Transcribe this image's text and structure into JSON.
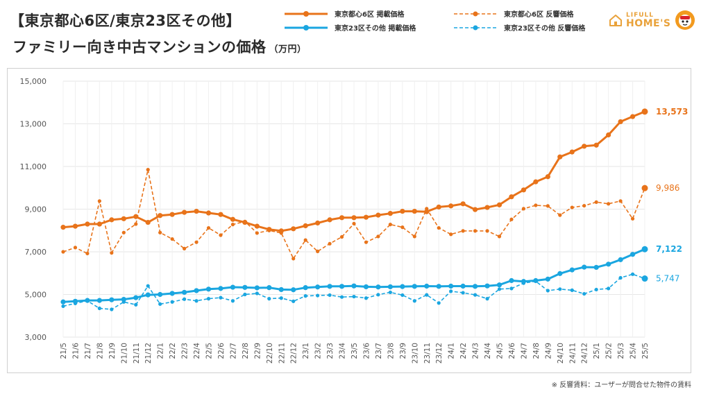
{
  "header": {
    "title_line1": "【東京都心6区/東京23区その他】",
    "title_line2": "ファミリー向き中古マンションの価格",
    "unit": "（万円）"
  },
  "legend": [
    {
      "label": "東京都心6区 掲載価格",
      "color": "#e8731a",
      "style": "solid"
    },
    {
      "label": "東京都心6区 反響価格",
      "color": "#e8731a",
      "style": "dashed"
    },
    {
      "label": "東京23区その他 掲載価格",
      "color": "#1aa6e0",
      "style": "solid"
    },
    {
      "label": "東京23区その他 反響価格",
      "color": "#1aa6e0",
      "style": "dashed"
    }
  ],
  "brand": {
    "line1": "LIFULL",
    "line2": "HOME'S",
    "color": "#e9a23b"
  },
  "footnote": "※ 反響賃料：ユーザーが問合せた物件の賃料",
  "chart_data": {
    "type": "line",
    "x": [
      "21/5",
      "21/6",
      "21/7",
      "21/8",
      "21/9",
      "21/10",
      "21/11",
      "21/12",
      "22/1",
      "22/2",
      "22/3",
      "22/4",
      "22/5",
      "22/6",
      "22/7",
      "22/8",
      "22/9",
      "22/10",
      "22/11",
      "22/12",
      "23/1",
      "23/2",
      "23/3",
      "23/4",
      "23/5",
      "23/6",
      "23/7",
      "23/8",
      "23/9",
      "23/10",
      "23/11",
      "23/12",
      "24/1",
      "24/2",
      "24/3",
      "24/4",
      "24/5",
      "24/6",
      "24/7",
      "24/8",
      "24/9",
      "24/10",
      "24/11",
      "24/12",
      "25/1",
      "25/2",
      "25/3",
      "25/4",
      "25/5"
    ],
    "ylim": [
      3000,
      15000
    ],
    "yticks": [
      3000,
      5000,
      7000,
      9000,
      11000,
      13000,
      15000
    ],
    "ytick_labels": [
      "3,000",
      "5,000",
      "7,000",
      "9,000",
      "11,000",
      "13,000",
      "15,000"
    ],
    "grid": true,
    "series": [
      {
        "name": "東京都心6区 掲載価格",
        "color": "#e8731a",
        "style": "solid",
        "values": [
          8150,
          8200,
          8300,
          8300,
          8500,
          8550,
          8650,
          8380,
          8700,
          8750,
          8850,
          8900,
          8820,
          8750,
          8520,
          8380,
          8200,
          8050,
          7980,
          8080,
          8220,
          8350,
          8500,
          8600,
          8600,
          8620,
          8720,
          8800,
          8900,
          8900,
          8880,
          9100,
          9150,
          9250,
          8980,
          9080,
          9200,
          9580,
          9900,
          10280,
          10520,
          11450,
          11680,
          11950,
          12000,
          12480,
          13100,
          13340,
          13573
        ],
        "end_label": "13,573"
      },
      {
        "name": "東京都心6区 反響価格",
        "color": "#e8731a",
        "style": "dashed",
        "values": [
          7000,
          7200,
          6920,
          9380,
          6950,
          7900,
          8300,
          10850,
          7900,
          7600,
          7150,
          7450,
          8120,
          7780,
          8280,
          8420,
          7880,
          8000,
          7880,
          6680,
          7550,
          7020,
          7380,
          7700,
          8320,
          7450,
          7720,
          8280,
          8150,
          7720,
          9020,
          8120,
          7820,
          7980,
          7980,
          7980,
          7720,
          8520,
          9020,
          9180,
          9150,
          8720,
          9080,
          9160,
          9330,
          9250,
          9380,
          8550,
          9986
        ],
        "end_label": "9,986"
      },
      {
        "name": "東京23区その他 掲載価格",
        "color": "#1aa6e0",
        "style": "solid",
        "values": [
          4650,
          4680,
          4720,
          4720,
          4750,
          4770,
          4850,
          4980,
          5000,
          5050,
          5100,
          5180,
          5250,
          5280,
          5340,
          5330,
          5310,
          5320,
          5230,
          5220,
          5320,
          5350,
          5380,
          5380,
          5400,
          5360,
          5350,
          5360,
          5370,
          5380,
          5390,
          5380,
          5390,
          5390,
          5380,
          5400,
          5450,
          5650,
          5610,
          5650,
          5720,
          5980,
          6150,
          6280,
          6270,
          6420,
          6630,
          6880,
          7122
        ],
        "end_label": "7,122"
      },
      {
        "name": "東京23区その他 反響価格",
        "color": "#1aa6e0",
        "style": "dashed",
        "values": [
          4450,
          4580,
          4700,
          4350,
          4300,
          4650,
          4520,
          5400,
          4550,
          4650,
          4780,
          4700,
          4800,
          4850,
          4700,
          5000,
          5050,
          4800,
          4830,
          4680,
          4930,
          4950,
          4970,
          4880,
          4900,
          4830,
          4990,
          5100,
          4970,
          4700,
          4980,
          4600,
          5150,
          5080,
          4980,
          4800,
          5250,
          5280,
          5530,
          5620,
          5180,
          5250,
          5200,
          5030,
          5230,
          5280,
          5780,
          5950,
          5747
        ],
        "end_label": "5,747"
      }
    ]
  }
}
